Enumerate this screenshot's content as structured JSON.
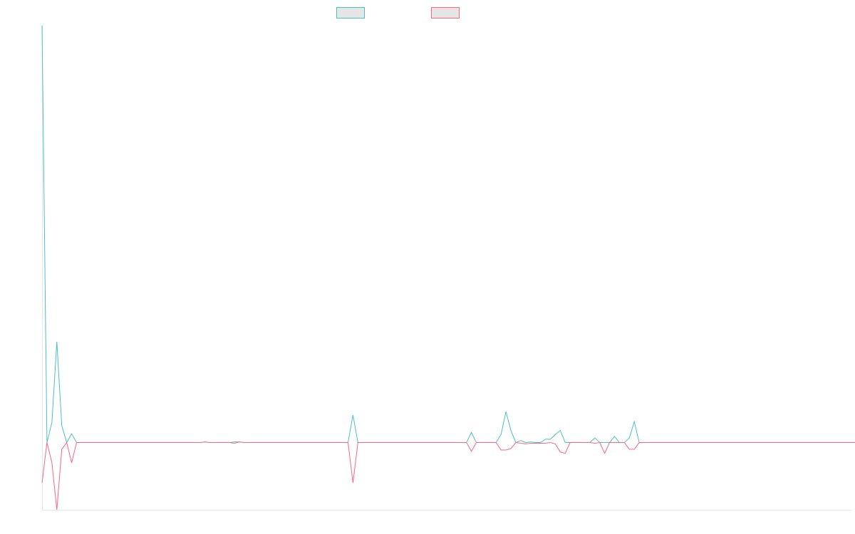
{
  "chart_data": {
    "type": "line",
    "title": "",
    "xlabel": "",
    "ylabel": "",
    "ylim": [
      -100,
      620
    ],
    "grid": false,
    "legend": "top-center",
    "series": [
      {
        "name": "",
        "color": "#4bc0c0",
        "values": [
          620,
          0,
          30,
          150,
          25,
          0,
          13,
          0,
          0,
          0,
          0,
          0,
          0,
          0,
          0,
          0,
          0,
          0,
          0,
          0,
          0,
          0,
          0,
          0,
          0,
          0,
          0,
          0,
          0,
          0,
          0,
          0,
          0,
          1,
          0,
          0,
          0,
          0,
          0,
          1,
          1,
          0,
          0,
          0,
          0,
          0,
          0,
          0,
          0,
          0,
          0,
          0,
          0,
          0,
          0,
          0,
          0,
          0,
          0,
          0,
          0,
          0,
          0,
          41,
          0,
          0,
          0,
          0,
          0,
          0,
          0,
          0,
          0,
          0,
          0,
          0,
          0,
          0,
          0,
          0,
          0,
          0,
          0,
          0,
          0,
          0,
          0,
          15,
          0,
          0,
          0,
          0,
          0,
          12,
          46,
          18,
          0,
          3,
          0,
          1,
          0,
          0,
          5,
          5,
          12,
          18,
          0,
          0,
          0,
          0,
          0,
          0,
          7,
          0,
          0,
          0,
          9,
          0,
          0,
          7,
          31,
          0,
          0,
          0,
          0,
          0,
          0,
          0,
          0,
          0,
          0,
          0,
          0,
          0,
          0,
          0,
          0,
          0,
          0,
          0,
          0,
          0,
          0,
          0,
          0,
          0,
          0,
          0,
          0,
          0,
          0,
          0,
          0,
          0,
          0,
          0,
          0,
          0,
          0,
          0,
          0,
          0,
          0,
          0,
          0
        ]
      },
      {
        "name": "",
        "color": "#ff6384",
        "values": [
          -60,
          0,
          -30,
          -100,
          -10,
          0,
          -30,
          0,
          0,
          0,
          0,
          0,
          0,
          0,
          0,
          0,
          0,
          0,
          0,
          0,
          0,
          0,
          0,
          0,
          0,
          0,
          0,
          0,
          0,
          0,
          0,
          0,
          0,
          1,
          0,
          0,
          0,
          0,
          0,
          -1,
          1,
          0,
          0,
          0,
          0,
          0,
          0,
          0,
          0,
          0,
          0,
          0,
          0,
          0,
          0,
          0,
          0,
          0,
          0,
          0,
          0,
          0,
          0,
          -60,
          0,
          0,
          0,
          0,
          0,
          0,
          0,
          0,
          0,
          0,
          0,
          0,
          0,
          0,
          0,
          0,
          0,
          0,
          0,
          0,
          0,
          0,
          0,
          -13,
          0,
          0,
          0,
          0,
          0,
          -11,
          -11,
          -9,
          0,
          -1,
          -2,
          -1,
          -1,
          -1,
          -1,
          0,
          -2,
          -14,
          -16,
          0,
          0,
          0,
          0,
          0,
          -1,
          0,
          -16,
          0,
          0,
          0,
          0,
          -10,
          -10,
          0,
          0,
          0,
          0,
          0,
          0,
          0,
          0,
          0,
          0,
          0,
          0,
          0,
          0,
          0,
          0,
          0,
          0,
          0,
          0,
          0,
          0,
          0,
          0,
          0,
          0,
          0,
          0,
          0,
          0,
          0,
          0,
          0,
          0,
          0,
          0,
          0,
          0,
          0,
          0,
          0,
          0,
          0,
          0,
          0
        ]
      }
    ]
  }
}
